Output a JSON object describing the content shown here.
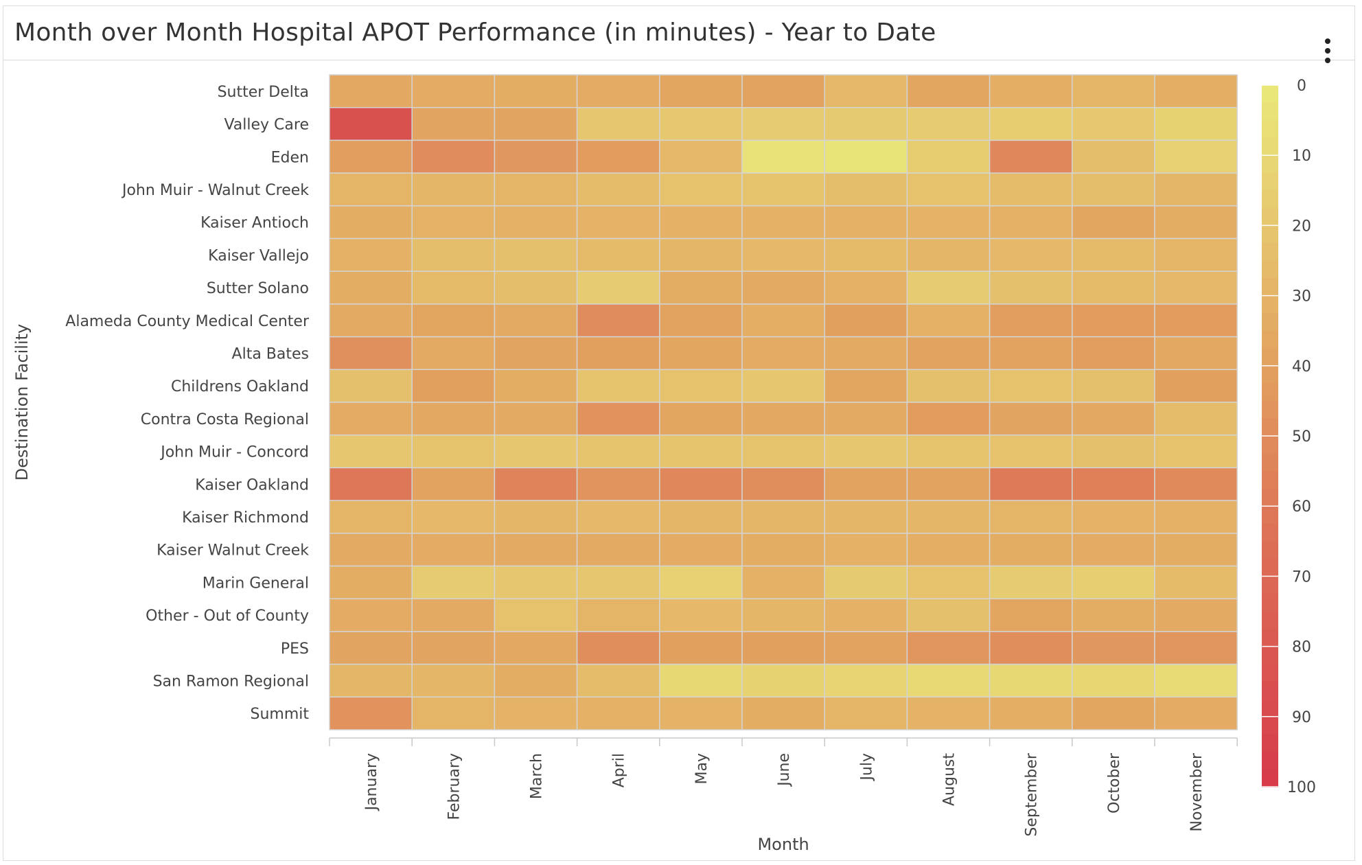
{
  "header": {
    "title": "Month over Month Hospital APOT Performance (in minutes) - Year to Date",
    "menu_icon": "more-vertical-icon"
  },
  "chart_data": {
    "type": "heatmap",
    "title": "Month over Month Hospital APOT Performance (in minutes) - Year to Date",
    "xlabel": "Month",
    "ylabel": "Destination Facility",
    "x_categories": [
      "January",
      "February",
      "March",
      "April",
      "May",
      "June",
      "July",
      "August",
      "September",
      "October",
      "November"
    ],
    "y_categories": [
      "Sutter Delta",
      "Valley Care",
      "Eden",
      "John Muir - Walnut Creek",
      "Kaiser Antioch",
      "Kaiser Vallejo",
      "Sutter Solano",
      "Alameda County Medical Center",
      "Alta Bates",
      "Childrens Oakland",
      "Contra Costa Regional",
      "John Muir - Concord",
      "Kaiser Oakland",
      "Kaiser Richmond",
      "Kaiser Walnut Creek",
      "Marin General",
      "Other - Out of County",
      "PES",
      "San Ramon Regional",
      "Summit"
    ],
    "values": [
      [
        36,
        34,
        33,
        34,
        37,
        39,
        27,
        37,
        32,
        29,
        32
      ],
      [
        85,
        38,
        38,
        20,
        19,
        17,
        18,
        17,
        16,
        19,
        13
      ],
      [
        41,
        50,
        44,
        42,
        27,
        4,
        3,
        16,
        52,
        24,
        14
      ],
      [
        29,
        28,
        29,
        25,
        22,
        21,
        24,
        22,
        25,
        24,
        28
      ],
      [
        33,
        30,
        31,
        30,
        31,
        31,
        31,
        30,
        31,
        37,
        33
      ],
      [
        31,
        24,
        23,
        26,
        28,
        27,
        26,
        28,
        27,
        26,
        29
      ],
      [
        33,
        26,
        24,
        17,
        33,
        35,
        31,
        17,
        23,
        26,
        27
      ],
      [
        35,
        37,
        35,
        50,
        39,
        32,
        40,
        31,
        41,
        42,
        42
      ],
      [
        48,
        35,
        38,
        40,
        37,
        34,
        35,
        39,
        39,
        41,
        36
      ],
      [
        23,
        40,
        33,
        21,
        22,
        20,
        37,
        23,
        22,
        23,
        40
      ],
      [
        34,
        36,
        35,
        47,
        37,
        36,
        35,
        42,
        38,
        36,
        25
      ],
      [
        20,
        21,
        20,
        21,
        21,
        21,
        20,
        21,
        22,
        23,
        22
      ],
      [
        61,
        39,
        54,
        46,
        52,
        49,
        39,
        39,
        59,
        56,
        51
      ],
      [
        29,
        27,
        28,
        27,
        28,
        28,
        28,
        28,
        29,
        30,
        31
      ],
      [
        35,
        34,
        35,
        35,
        34,
        33,
        31,
        32,
        33,
        34,
        33
      ],
      [
        33,
        17,
        20,
        20,
        14,
        31,
        18,
        22,
        17,
        15,
        26
      ],
      [
        34,
        35,
        22,
        29,
        27,
        28,
        31,
        23,
        37,
        33,
        35
      ],
      [
        38,
        38,
        36,
        49,
        40,
        40,
        39,
        45,
        49,
        44,
        45
      ],
      [
        28,
        28,
        33,
        25,
        10,
        13,
        12,
        9,
        10,
        11,
        8
      ],
      [
        47,
        29,
        30,
        31,
        30,
        33,
        29,
        30,
        32,
        37,
        34
      ]
    ],
    "colorbar": {
      "min": 0,
      "max": 100,
      "ticks": [
        0,
        10,
        20,
        30,
        40,
        50,
        60,
        70,
        80,
        90,
        100
      ],
      "low_color": "#e9e87a",
      "high_color": "#d5394b"
    }
  }
}
